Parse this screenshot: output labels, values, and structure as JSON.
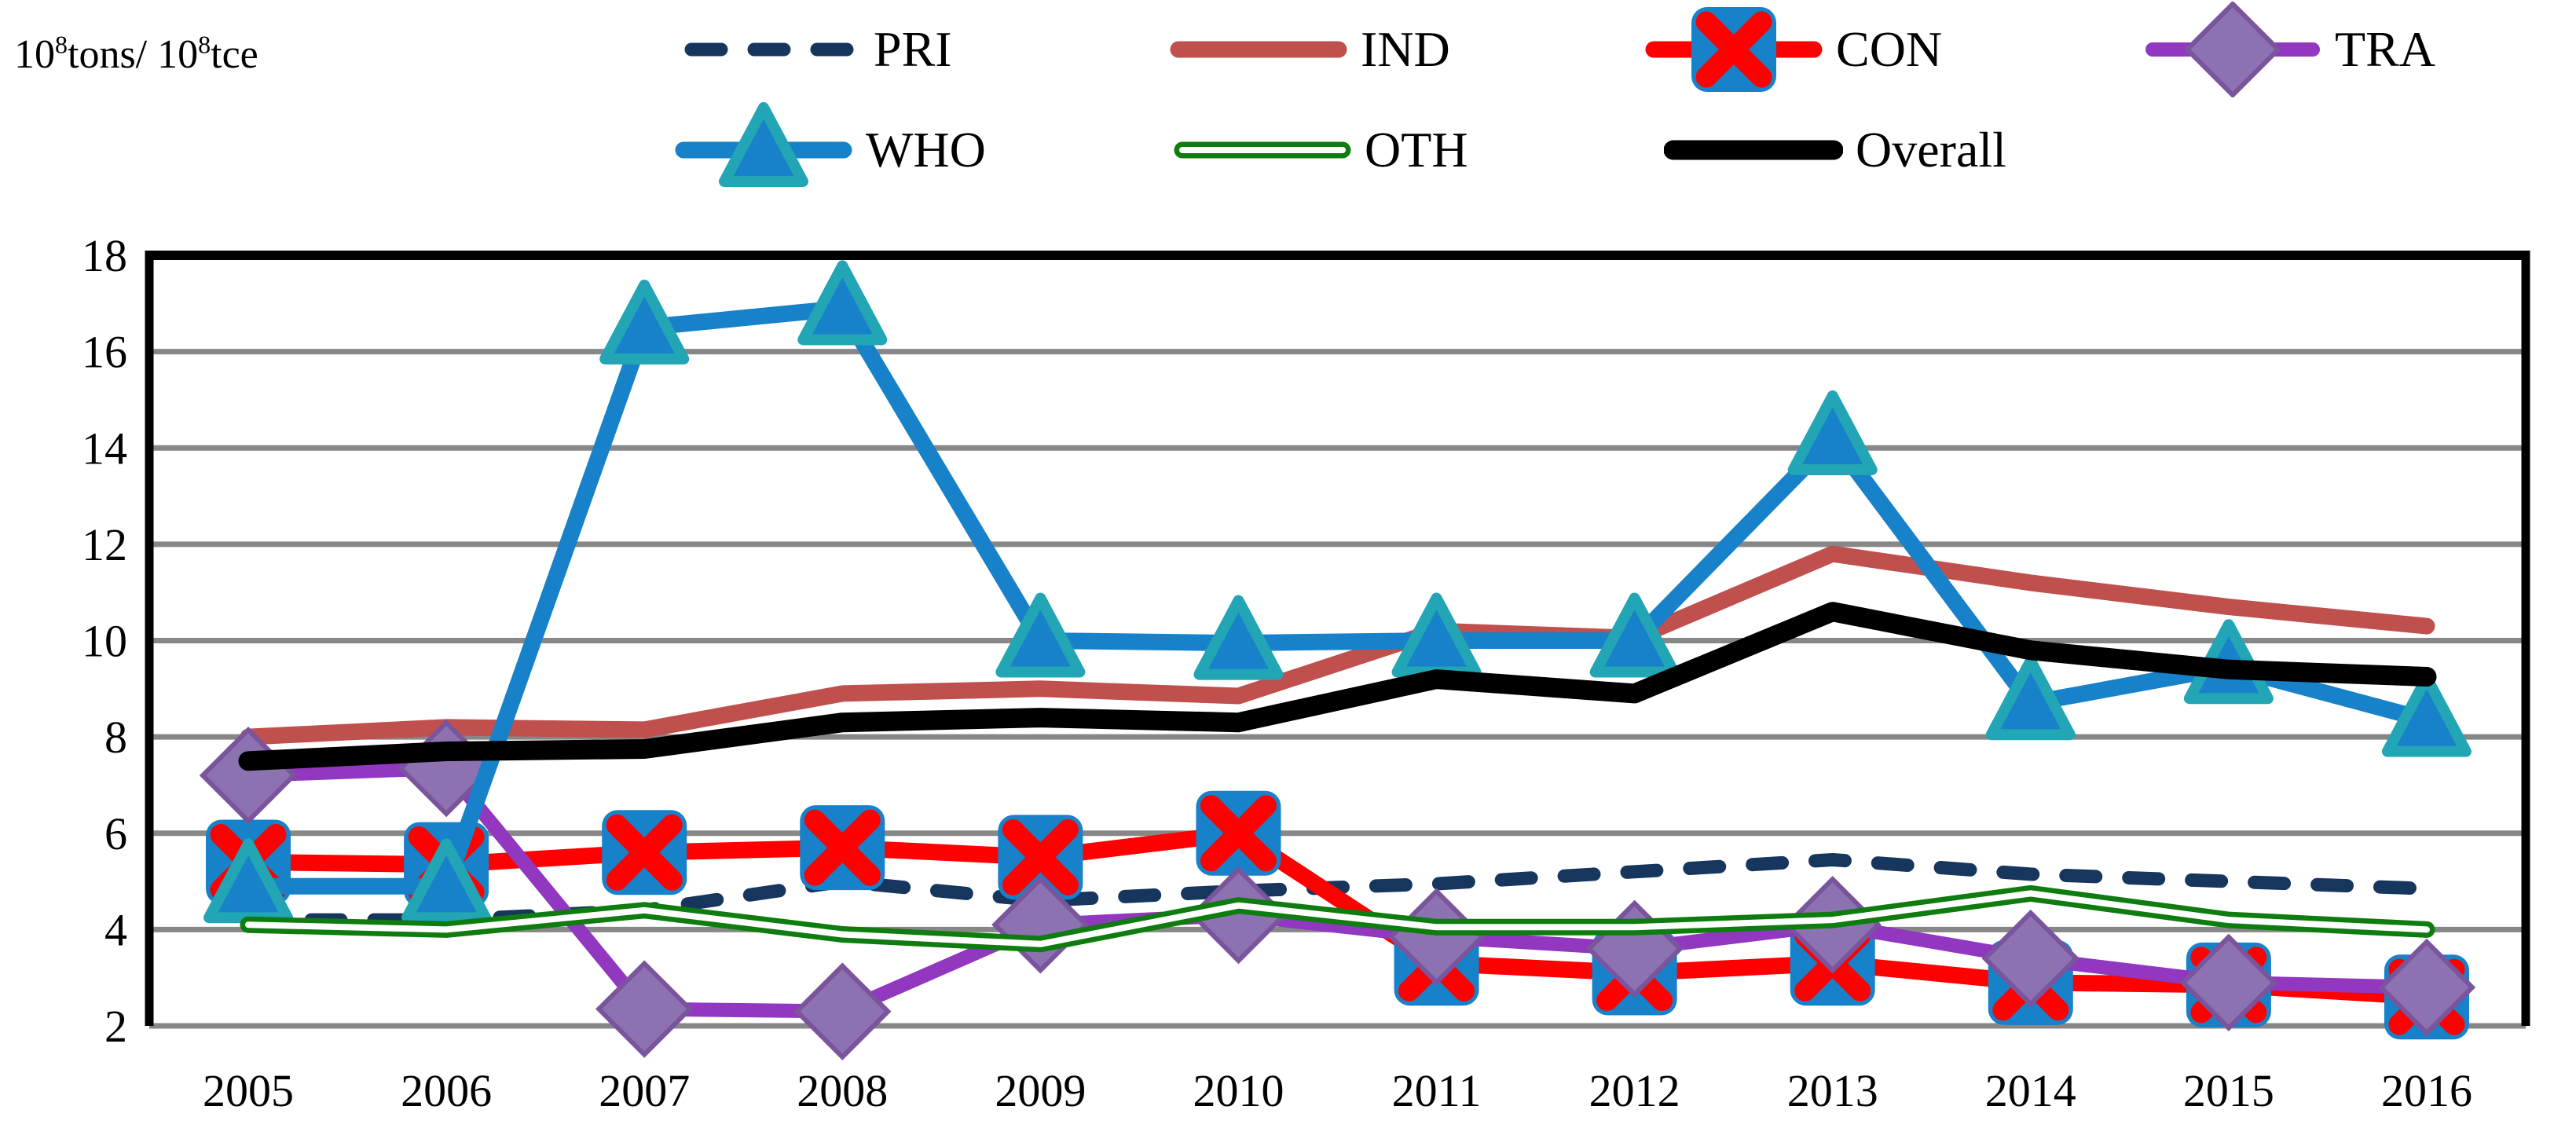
{
  "unit_label": {
    "full_text": "10⁸tons/ 10⁸tce",
    "parts": [
      {
        "t": "10",
        "sup": false
      },
      {
        "t": "8",
        "sup": true
      },
      {
        "t": "tons/ 10",
        "sup": false
      },
      {
        "t": "8",
        "sup": true
      },
      {
        "t": "tce",
        "sup": false
      }
    ]
  },
  "legend": {
    "items": [
      {
        "label": "PRI",
        "series": 0
      },
      {
        "label": "IND",
        "series": 1
      },
      {
        "label": "CON",
        "series": 2
      },
      {
        "label": "TRA",
        "series": 3
      },
      {
        "label": "WHO",
        "series": 4
      },
      {
        "label": "OTH",
        "series": 5
      },
      {
        "label": "Overall",
        "series": 6
      }
    ]
  },
  "colors": {
    "grid": "#878787",
    "axis_border": "#000000",
    "marker_box_blue": "#1781C9",
    "triangle_teal": "#22A5B4",
    "diamond_fill": "#8C72B0",
    "diamond_stroke": "#7A549C",
    "background": "#ffffff"
  },
  "chart_data": {
    "type": "line",
    "title": "",
    "xlabel": "",
    "ylabel": "10⁸tons/ 10⁸tce",
    "x": [
      "2005",
      "2006",
      "2007",
      "2008",
      "2009",
      "2010",
      "2011",
      "2012",
      "2013",
      "2014",
      "2015",
      "2016"
    ],
    "ylim": [
      2,
      18
    ],
    "yticks": [
      18,
      16,
      14,
      12,
      10,
      8,
      6,
      4,
      2
    ],
    "grid": "horizontal",
    "legend_position": "top",
    "series": [
      {
        "name": "PRI",
        "color": "#17365D",
        "style": "dashed",
        "marker": "none",
        "values": [
          4.2,
          4.2,
          4.4,
          5.0,
          4.6,
          4.8,
          4.95,
          5.2,
          5.45,
          5.15,
          5.0,
          4.85
        ]
      },
      {
        "name": "IND",
        "color": "#C0504D",
        "style": "solid",
        "marker": "none",
        "values": [
          8.0,
          8.2,
          8.15,
          8.9,
          9.0,
          8.85,
          10.2,
          10.05,
          11.8,
          11.2,
          10.7,
          10.3
        ]
      },
      {
        "name": "CON",
        "color": "#FE0000",
        "style": "solid",
        "marker": "x-square",
        "values": [
          5.4,
          5.35,
          5.6,
          5.7,
          5.5,
          6.0,
          3.3,
          3.1,
          3.3,
          2.9,
          2.85,
          2.6
        ]
      },
      {
        "name": "TRA",
        "color": "#9237C0",
        "style": "solid",
        "marker": "diamond",
        "values": [
          7.2,
          7.35,
          2.35,
          2.3,
          4.1,
          4.3,
          3.85,
          3.6,
          4.1,
          3.4,
          2.9,
          2.8
        ]
      },
      {
        "name": "WHO",
        "color": "#1781C9",
        "style": "solid",
        "marker": "triangle",
        "values": [
          4.9,
          4.9,
          16.5,
          16.9,
          10.0,
          9.95,
          10.0,
          10.0,
          14.2,
          8.7,
          9.45,
          8.35
        ]
      },
      {
        "name": "OTH",
        "color": "#0E7C0E",
        "style": "double",
        "marker": "none",
        "values": [
          4.1,
          4.0,
          4.4,
          3.9,
          3.7,
          4.5,
          4.05,
          4.05,
          4.2,
          4.75,
          4.2,
          4.0
        ]
      },
      {
        "name": "Overall",
        "color": "#000000",
        "style": "solid-bold",
        "marker": "none",
        "values": [
          7.5,
          7.7,
          7.75,
          8.3,
          8.4,
          8.3,
          9.2,
          8.9,
          10.6,
          9.8,
          9.4,
          9.25
        ]
      }
    ]
  }
}
